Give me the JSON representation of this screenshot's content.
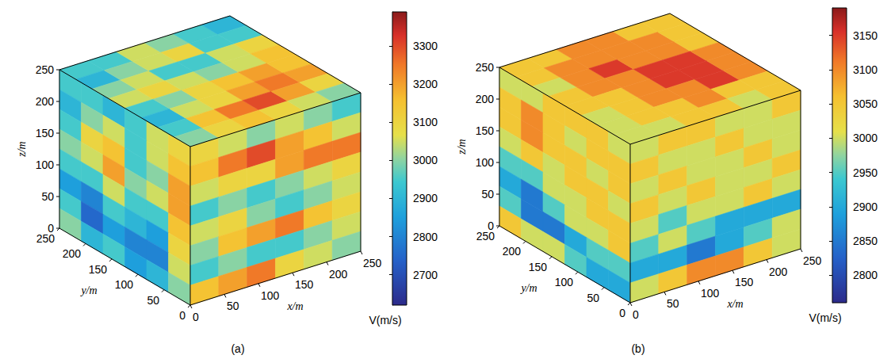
{
  "chart_data": [
    {
      "type": "cube",
      "caption": "(a)",
      "x_label": "x/m",
      "y_label": "y/m",
      "z_label": "z/m",
      "xlim": [
        0,
        250
      ],
      "xticks": [
        0,
        50,
        100,
        150,
        200,
        250
      ],
      "ylim": [
        0,
        250
      ],
      "yticks": [
        0,
        50,
        100,
        150,
        200,
        250
      ],
      "zlim": [
        0,
        250
      ],
      "zticks": [
        0,
        50,
        100,
        150,
        200,
        250
      ],
      "colorbar": {
        "label": "V(m/s)",
        "lim": [
          2620,
          3390
        ],
        "ticks": [
          2700,
          2800,
          2900,
          3000,
          3100,
          3200,
          3300
        ]
      },
      "cells": {
        "x0": [
          [
            2950,
            2950,
            2900,
            2950,
            3050,
            3100
          ],
          [
            2900,
            3000,
            3050,
            2950,
            3050,
            3150
          ],
          [
            2950,
            3100,
            3150,
            2950,
            3000,
            3200
          ],
          [
            3000,
            3050,
            3200,
            3000,
            3050,
            3200
          ],
          [
            2950,
            2950,
            3050,
            2950,
            2950,
            3150
          ],
          [
            2850,
            2800,
            2950,
            2900,
            2850,
            3100
          ],
          [
            2950,
            2750,
            2850,
            2800,
            2800,
            3050
          ],
          [
            3000,
            2900,
            2950,
            2850,
            2900,
            3000
          ]
        ],
        "y0": [
          [
            3100,
            3050,
            3000,
            3050,
            3000,
            2950
          ],
          [
            3150,
            3250,
            3300,
            3200,
            3150,
            3050
          ],
          [
            3050,
            3100,
            3100,
            3200,
            3250,
            3250
          ],
          [
            2950,
            3000,
            2950,
            3000,
            3050,
            3100
          ],
          [
            3050,
            3100,
            3000,
            2950,
            3000,
            3050
          ],
          [
            3000,
            3150,
            3200,
            3250,
            3150,
            3100
          ],
          [
            2950,
            3000,
            2950,
            2950,
            3000,
            3050
          ],
          [
            3150,
            3200,
            3250,
            3100,
            3050,
            3000
          ]
        ],
        "top": [
          [
            2950,
            2950,
            3050,
            3000,
            2950,
            2900
          ],
          [
            2900,
            3000,
            3050,
            3100,
            2950,
            2950
          ],
          [
            3000,
            3050,
            2950,
            2950,
            3050,
            3100
          ],
          [
            3050,
            3100,
            3050,
            3000,
            3050,
            3150
          ],
          [
            2950,
            3000,
            3100,
            3150,
            3200,
            3150
          ],
          [
            2900,
            3050,
            3100,
            3200,
            3250,
            3200
          ],
          [
            2950,
            3150,
            3250,
            3300,
            3200,
            3100
          ],
          [
            3000,
            3100,
            3150,
            3100,
            3050,
            3000
          ]
        ]
      }
    },
    {
      "type": "cube",
      "caption": "(b)",
      "x_label": "x/m",
      "y_label": "y/m",
      "z_label": "z/m",
      "xlim": [
        0,
        250
      ],
      "xticks": [
        0,
        50,
        100,
        150,
        200,
        250
      ],
      "ylim": [
        0,
        250
      ],
      "yticks": [
        0,
        50,
        100,
        150,
        200,
        250
      ],
      "zlim": [
        0,
        250
      ],
      "zticks": [
        0,
        50,
        100,
        150,
        200,
        250
      ],
      "colorbar": {
        "label": "V(m/s)",
        "lim": [
          2760,
          3190
        ],
        "ticks": [
          2800,
          2850,
          2900,
          2950,
          3000,
          3050,
          3100,
          3150
        ]
      },
      "cells": {
        "x0": [
          [
            3000,
            3000,
            3050,
            3050,
            3050,
            3000
          ],
          [
            3050,
            3100,
            3050,
            3000,
            3050,
            3050
          ],
          [
            3050,
            3100,
            3050,
            3050,
            3000,
            3050
          ],
          [
            3000,
            3050,
            3000,
            3050,
            3050,
            3000
          ],
          [
            2950,
            2950,
            3000,
            3000,
            3050,
            3050
          ],
          [
            2900,
            2850,
            2950,
            3000,
            3000,
            3050
          ],
          [
            2950,
            2850,
            2850,
            2900,
            2950,
            2950
          ],
          [
            3050,
            3000,
            3000,
            2950,
            2900,
            2900
          ]
        ],
        "y0": [
          [
            3000,
            3050,
            3050,
            3000,
            3000,
            3050
          ],
          [
            3050,
            3000,
            3000,
            3050,
            3000,
            3000
          ],
          [
            3000,
            3050,
            3000,
            3000,
            3050,
            3000
          ],
          [
            3050,
            3000,
            3050,
            3000,
            3000,
            3050
          ],
          [
            3000,
            2950,
            3000,
            3000,
            3050,
            3000
          ],
          [
            2950,
            3000,
            2950,
            2900,
            2900,
            2900
          ],
          [
            2900,
            2900,
            2850,
            2900,
            2950,
            3000
          ],
          [
            3000,
            3050,
            3100,
            3100,
            3050,
            3000
          ]
        ],
        "top": [
          [
            3050,
            3050,
            3100,
            3100,
            3050,
            3050
          ],
          [
            3050,
            3100,
            3100,
            3100,
            3100,
            3050
          ],
          [
            3000,
            3100,
            3150,
            3100,
            3100,
            3050
          ],
          [
            3050,
            3100,
            3100,
            3150,
            3150,
            3100
          ],
          [
            3050,
            3050,
            3100,
            3150,
            3150,
            3100
          ],
          [
            3000,
            3050,
            3100,
            3100,
            3150,
            3100
          ],
          [
            3000,
            3050,
            3050,
            3100,
            3050,
            3050
          ],
          [
            3000,
            3000,
            3050,
            3050,
            3000,
            3050
          ]
        ]
      }
    }
  ]
}
